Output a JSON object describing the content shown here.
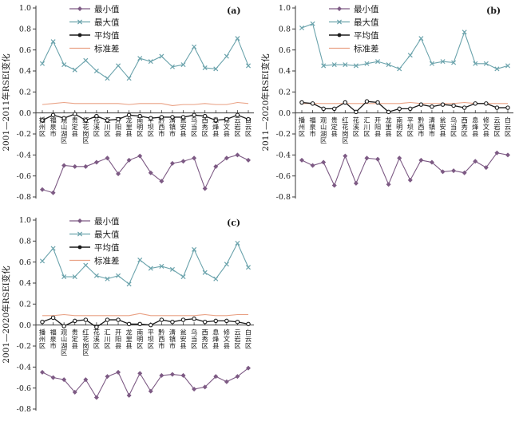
{
  "figure": {
    "background": "#ffffff",
    "colors": {
      "min": "#7d5a84",
      "max": "#6ba3ac",
      "mean": "#1a1a1a",
      "std": "#e9a184",
      "axis": "#3a3a3a",
      "text": "#1a1a1a"
    }
  },
  "chart_data": [
    {
      "type": "line",
      "panel_label": "(a)",
      "ylabel": "2001—2011年RSEI变化",
      "ylim": [
        -0.8,
        1.0
      ],
      "ytick_step": 0.2,
      "grid": false,
      "legend_position": "top-left-inside",
      "categories": [
        "播州区",
        "福泉市",
        "观山湖区",
        "贵定县",
        "红花岗区",
        "花溪区",
        "汇川区",
        "开阳县",
        "龙里县",
        "南明区",
        "平坝区",
        "黔西市",
        "清镇市",
        "瓮安县",
        "乌当区",
        "西秀区",
        "息烽县",
        "修文县",
        "云岩区",
        "白云区"
      ],
      "series": [
        {
          "name": "最小值",
          "color_key": "min",
          "marker": "diamond",
          "values": [
            -0.73,
            -0.76,
            -0.5,
            -0.51,
            -0.51,
            -0.47,
            -0.43,
            -0.58,
            -0.45,
            -0.41,
            -0.57,
            -0.65,
            -0.48,
            -0.46,
            -0.43,
            -0.72,
            -0.51,
            -0.43,
            -0.4,
            -0.45
          ]
        },
        {
          "name": "最大值",
          "color_key": "max",
          "marker": "x",
          "values": [
            0.47,
            0.68,
            0.46,
            0.41,
            0.5,
            0.4,
            0.33,
            0.45,
            0.33,
            0.52,
            0.49,
            0.54,
            0.44,
            0.46,
            0.63,
            0.43,
            0.42,
            0.54,
            0.71,
            0.45
          ]
        },
        {
          "name": "平均值",
          "color_key": "mean",
          "marker": "circle-open",
          "values": [
            -0.07,
            -0.02,
            -0.05,
            -0.01,
            -0.07,
            -0.03,
            -0.07,
            -0.06,
            -0.02,
            -0.03,
            -0.05,
            -0.04,
            -0.04,
            -0.04,
            -0.02,
            -0.03,
            -0.07,
            -0.06,
            -0.02,
            -0.06
          ]
        },
        {
          "name": "标准差",
          "color_key": "std",
          "marker": "none",
          "values": [
            0.08,
            0.09,
            0.1,
            0.09,
            0.09,
            0.09,
            0.09,
            0.09,
            0.08,
            0.09,
            0.09,
            0.09,
            0.07,
            0.08,
            0.08,
            0.09,
            0.08,
            0.08,
            0.1,
            0.09
          ]
        }
      ]
    },
    {
      "type": "line",
      "panel_label": "(b)",
      "ylabel": "2011—2020年RSEI变化",
      "ylim": [
        -0.8,
        1.0
      ],
      "ytick_step": 0.2,
      "grid": false,
      "legend_position": "top-left-inside",
      "categories": [
        "播州区",
        "福泉市",
        "观山湖区",
        "贵定县",
        "红花岗区",
        "花溪区",
        "汇川区",
        "开阳县",
        "龙里县",
        "南明区",
        "平坝区",
        "黔西市",
        "清镇市",
        "瓮安县",
        "乌当区",
        "西秀区",
        "息烽县",
        "修文县",
        "云岩区",
        "白云区"
      ],
      "series": [
        {
          "name": "最小值",
          "color_key": "min",
          "marker": "diamond",
          "values": [
            -0.45,
            -0.5,
            -0.47,
            -0.69,
            -0.41,
            -0.67,
            -0.43,
            -0.44,
            -0.68,
            -0.43,
            -0.64,
            -0.45,
            -0.47,
            -0.56,
            -0.55,
            -0.57,
            -0.46,
            -0.52,
            -0.38,
            -0.4
          ]
        },
        {
          "name": "最大值",
          "color_key": "max",
          "marker": "x",
          "values": [
            0.81,
            0.85,
            0.45,
            0.46,
            0.46,
            0.45,
            0.47,
            0.49,
            0.46,
            0.42,
            0.55,
            0.71,
            0.47,
            0.49,
            0.48,
            0.77,
            0.47,
            0.47,
            0.42,
            0.45
          ]
        },
        {
          "name": "平均值",
          "color_key": "mean",
          "marker": "circle-open",
          "values": [
            0.1,
            0.09,
            0.04,
            0.04,
            0.1,
            0.01,
            0.11,
            0.1,
            0.01,
            0.04,
            0.04,
            0.08,
            0.06,
            0.08,
            0.07,
            0.05,
            0.09,
            0.09,
            0.05,
            0.05
          ]
        },
        {
          "name": "标准差",
          "color_key": "std",
          "marker": "none",
          "values": [
            0.09,
            0.09,
            0.09,
            0.09,
            0.09,
            0.09,
            0.09,
            0.09,
            0.09,
            0.09,
            0.1,
            0.09,
            0.09,
            0.09,
            0.09,
            0.1,
            0.09,
            0.09,
            0.09,
            0.09
          ]
        }
      ]
    },
    {
      "type": "line",
      "panel_label": "(c)",
      "ylabel": "2001—2020年RSEI变化",
      "ylim": [
        -0.8,
        1.0
      ],
      "ytick_step": 0.2,
      "grid": false,
      "legend_position": "top-left-inside",
      "categories": [
        "播州区",
        "福泉市",
        "观山湖区",
        "贵定县",
        "红花岗区",
        "花溪区",
        "汇川区",
        "开阳县",
        "龙里县",
        "南明区",
        "平坝区",
        "黔西市",
        "清镇市",
        "瓮安县",
        "乌当区",
        "西秀区",
        "息烽县",
        "修文县",
        "云岩区",
        "白云区"
      ],
      "series": [
        {
          "name": "最小值",
          "color_key": "min",
          "marker": "diamond",
          "values": [
            -0.45,
            -0.5,
            -0.52,
            -0.64,
            -0.52,
            -0.69,
            -0.49,
            -0.45,
            -0.67,
            -0.46,
            -0.63,
            -0.48,
            -0.47,
            -0.48,
            -0.61,
            -0.59,
            -0.49,
            -0.54,
            -0.49,
            -0.41
          ]
        },
        {
          "name": "最大值",
          "color_key": "max",
          "marker": "x",
          "values": [
            0.61,
            0.73,
            0.46,
            0.46,
            0.57,
            0.47,
            0.44,
            0.47,
            0.39,
            0.62,
            0.54,
            0.56,
            0.53,
            0.46,
            0.72,
            0.5,
            0.44,
            0.58,
            0.78,
            0.55
          ]
        },
        {
          "name": "平均值",
          "color_key": "mean",
          "marker": "circle-open",
          "values": [
            0.03,
            0.07,
            -0.01,
            0.04,
            0.05,
            -0.02,
            0.05,
            0.05,
            0.01,
            0.01,
            0.0,
            0.05,
            0.03,
            0.05,
            0.06,
            0.03,
            0.04,
            0.04,
            0.03,
            0.01
          ]
        },
        {
          "name": "标准差",
          "color_key": "std",
          "marker": "none",
          "values": [
            0.09,
            0.09,
            0.1,
            0.09,
            0.09,
            0.09,
            0.09,
            0.09,
            0.09,
            0.11,
            0.09,
            0.09,
            0.09,
            0.09,
            0.09,
            0.1,
            0.09,
            0.09,
            0.1,
            0.1
          ]
        }
      ]
    }
  ]
}
